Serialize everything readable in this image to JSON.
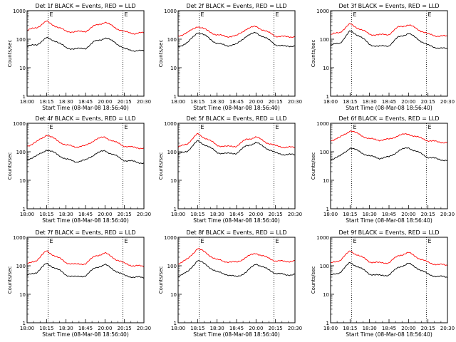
{
  "chart_data": [
    {
      "type": "line",
      "title": "Det 1f BLACK = Events, RED = LLD",
      "xlabel": "Start Time (08-Mar-08 18:56:40)",
      "ylabel": "Counts/sec",
      "yscale": "log",
      "ylim": [
        1,
        1000
      ],
      "x_ticks": [
        "18:00",
        "18:15",
        "18:30",
        "18:45",
        "20:00",
        "20:15",
        "20:30"
      ],
      "y_ticks": [
        "1",
        "10",
        "100",
        "1000"
      ],
      "flag": "E",
      "series": [
        {
          "name": "Events",
          "color": "#000000",
          "values": [
            55,
            65,
            110,
            85,
            50,
            45,
            48,
            85,
            110,
            80,
            45,
            40,
            38
          ]
        },
        {
          "name": "LLD",
          "color": "#ff0000",
          "values": [
            200,
            260,
            420,
            280,
            190,
            180,
            190,
            300,
            400,
            260,
            180,
            160,
            165
          ]
        }
      ]
    },
    {
      "type": "line",
      "title": "Det 2f BLACK = Events, RED = LLD",
      "xlabel": "Start Time (08-Mar-08 18:56:40)",
      "ylabel": "Counts/sec",
      "yscale": "log",
      "ylim": [
        1,
        1000
      ],
      "x_ticks": [
        "18:00",
        "18:15",
        "18:30",
        "18:45",
        "20:00",
        "20:15",
        "20:30"
      ],
      "y_ticks": [
        "1",
        "10",
        "100",
        "1000"
      ],
      "flag": "E",
      "series": [
        {
          "name": "Events",
          "color": "#000000",
          "values": [
            55,
            75,
            180,
            120,
            70,
            60,
            65,
            130,
            170,
            110,
            65,
            55,
            60
          ]
        },
        {
          "name": "LLD",
          "color": "#ff0000",
          "values": [
            130,
            170,
            290,
            200,
            140,
            125,
            130,
            230,
            280,
            190,
            130,
            120,
            125
          ]
        }
      ]
    },
    {
      "type": "line",
      "title": "Det 3f BLACK = Events, RED = LLD",
      "xlabel": "Start Time (08-Mar-08 18:56:40)",
      "ylabel": "Counts/sec",
      "yscale": "log",
      "ylim": [
        1,
        1000
      ],
      "x_ticks": [
        "18:00",
        "18:15",
        "18:30",
        "18:45",
        "20:00",
        "20:15",
        "20:30"
      ],
      "y_ticks": [
        "1",
        "10",
        "100",
        "1000"
      ],
      "flag": "E",
      "series": [
        {
          "name": "Events",
          "color": "#000000",
          "values": [
            60,
            75,
            190,
            130,
            65,
            55,
            60,
            120,
            160,
            100,
            60,
            50,
            45
          ]
        },
        {
          "name": "LLD",
          "color": "#ff0000",
          "values": [
            140,
            180,
            340,
            230,
            150,
            140,
            150,
            270,
            320,
            220,
            150,
            130,
            125
          ]
        }
      ]
    },
    {
      "type": "line",
      "title": "Det 4f BLACK = Events, RED = LLD",
      "xlabel": "Start Time (08-Mar-08 18:56:40)",
      "ylabel": "Counts/sec",
      "yscale": "log",
      "ylim": [
        1,
        1000
      ],
      "x_ticks": [
        "18:00",
        "18:15",
        "18:30",
        "18:45",
        "20:00",
        "20:15",
        "20:30"
      ],
      "y_ticks": [
        "1",
        "10",
        "100",
        "1000"
      ],
      "flag": "E",
      "series": [
        {
          "name": "Events",
          "color": "#000000",
          "values": [
            55,
            70,
            120,
            85,
            55,
            45,
            50,
            85,
            110,
            75,
            50,
            45,
            40
          ]
        },
        {
          "name": "LLD",
          "color": "#ff0000",
          "values": [
            160,
            220,
            400,
            260,
            170,
            150,
            160,
            270,
            330,
            220,
            160,
            140,
            135
          ]
        }
      ]
    },
    {
      "type": "line",
      "title": "Det 5f BLACK = Events, RED = LLD",
      "xlabel": "Start Time (08-Mar-08 18:56:40)",
      "ylabel": "Counts/sec",
      "yscale": "log",
      "ylim": [
        1,
        1000
      ],
      "x_ticks": [
        "18:00",
        "18:15",
        "18:30",
        "18:45",
        "20:00",
        "20:15",
        "20:30"
      ],
      "y_ticks": [
        "1",
        "10",
        "100",
        "1000"
      ],
      "flag": "E",
      "series": [
        {
          "name": "Events",
          "color": "#000000",
          "values": [
            80,
            110,
            240,
            160,
            95,
            85,
            90,
            160,
            210,
            140,
            90,
            80,
            78
          ]
        },
        {
          "name": "LLD",
          "color": "#ff0000",
          "values": [
            140,
            200,
            420,
            280,
            170,
            150,
            160,
            270,
            330,
            220,
            160,
            145,
            140
          ]
        }
      ]
    },
    {
      "type": "line",
      "title": "Det 6f BLACK = Events, RED = LLD",
      "xlabel": "Start Time (08-Mar-08 18:56:40)",
      "ylabel": "Counts/sec",
      "yscale": "log",
      "ylim": [
        1,
        1000
      ],
      "x_ticks": [
        "18:00",
        "18:15",
        "18:30",
        "18:45",
        "20:00",
        "20:15",
        "20:30"
      ],
      "y_ticks": [
        "1",
        "10",
        "100",
        "1000"
      ],
      "flag": "E",
      "series": [
        {
          "name": "Events",
          "color": "#000000",
          "values": [
            55,
            70,
            140,
            100,
            70,
            60,
            65,
            110,
            140,
            95,
            65,
            55,
            50
          ]
        },
        {
          "name": "LLD",
          "color": "#ff0000",
          "values": [
            250,
            320,
            560,
            400,
            280,
            260,
            270,
            380,
            420,
            320,
            250,
            220,
            215
          ]
        }
      ]
    },
    {
      "type": "line",
      "title": "Det 7f BLACK = Events, RED = LLD",
      "xlabel": "Start Time (08-Mar-08 18:56:40)",
      "ylabel": "Counts/sec",
      "yscale": "log",
      "ylim": [
        1,
        1000
      ],
      "x_ticks": [
        "18:00",
        "18:15",
        "18:30",
        "18:45",
        "20:00",
        "20:15",
        "20:30"
      ],
      "y_ticks": [
        "1",
        "10",
        "100",
        "1000"
      ],
      "flag": "E",
      "series": [
        {
          "name": "Events",
          "color": "#000000",
          "values": [
            45,
            60,
            120,
            80,
            48,
            40,
            45,
            85,
            110,
            70,
            45,
            40,
            38
          ]
        },
        {
          "name": "LLD",
          "color": "#ff0000",
          "values": [
            110,
            160,
            330,
            210,
            130,
            110,
            120,
            220,
            280,
            180,
            120,
            100,
            95
          ]
        }
      ]
    },
    {
      "type": "line",
      "title": "Det 8f BLACK = Events, RED = LLD",
      "xlabel": "Start Time (08-Mar-08 18:56:40)",
      "ylabel": "Counts/sec",
      "yscale": "log",
      "ylim": [
        1,
        1000
      ],
      "x_ticks": [
        "18:00",
        "18:15",
        "18:30",
        "18:45",
        "20:00",
        "20:15",
        "20:30"
      ],
      "y_ticks": [
        "1",
        "10",
        "100",
        "1000"
      ],
      "flag": "E",
      "series": [
        {
          "name": "Events",
          "color": "#000000",
          "values": [
            45,
            60,
            160,
            100,
            60,
            50,
            40,
            60,
            120,
            80,
            55,
            48,
            50
          ]
        },
        {
          "name": "LLD",
          "color": "#ff0000",
          "values": [
            120,
            170,
            420,
            260,
            160,
            140,
            130,
            200,
            280,
            200,
            150,
            140,
            150
          ]
        }
      ]
    },
    {
      "type": "line",
      "title": "Det 9f BLACK = Events, RED = LLD",
      "xlabel": "Start Time (08-Mar-08 18:56:40)",
      "ylabel": "Counts/sec",
      "yscale": "log",
      "ylim": [
        1,
        1000
      ],
      "x_ticks": [
        "18:00",
        "18:15",
        "18:30",
        "18:45",
        "20:00",
        "20:15",
        "20:30"
      ],
      "y_ticks": [
        "1",
        "10",
        "100",
        "1000"
      ],
      "flag": "E",
      "series": [
        {
          "name": "Events",
          "color": "#000000",
          "values": [
            45,
            60,
            130,
            85,
            52,
            45,
            48,
            90,
            120,
            80,
            50,
            42,
            40
          ]
        },
        {
          "name": "LLD",
          "color": "#ff0000",
          "values": [
            120,
            160,
            330,
            220,
            140,
            125,
            130,
            230,
            290,
            190,
            130,
            110,
            105
          ]
        }
      ]
    }
  ]
}
